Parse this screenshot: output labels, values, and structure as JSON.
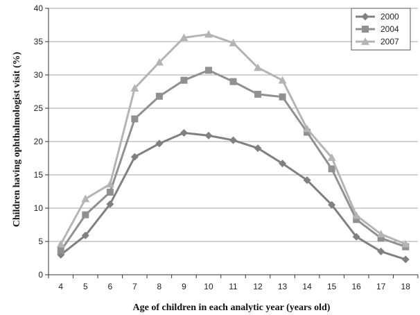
{
  "chart_data": {
    "type": "line",
    "title": "",
    "xlabel": "Age of children in each analytic year (years old)",
    "ylabel": "Children having ophthalmologist visit (%)",
    "x": [
      4,
      5,
      6,
      7,
      8,
      9,
      10,
      11,
      12,
      13,
      14,
      15,
      16,
      17,
      18
    ],
    "xlim": [
      4,
      18
    ],
    "ylim": [
      0,
      40
    ],
    "yticks": [
      0,
      5,
      10,
      15,
      20,
      25,
      30,
      35,
      40
    ],
    "grid": true,
    "legend_position": "top-right",
    "series": [
      {
        "name": "2000",
        "marker": "diamond",
        "color": "#808080",
        "values": [
          3.0,
          5.9,
          10.6,
          17.7,
          19.7,
          21.3,
          20.9,
          20.2,
          19.0,
          16.7,
          14.2,
          10.5,
          5.7,
          3.5,
          2.3
        ]
      },
      {
        "name": "2004",
        "marker": "square",
        "color": "#909090",
        "values": [
          3.6,
          9.0,
          12.4,
          23.4,
          26.8,
          29.2,
          30.7,
          29.0,
          27.1,
          26.7,
          21.4,
          15.9,
          8.3,
          5.5,
          4.2
        ]
      },
      {
        "name": "2007",
        "marker": "triangle",
        "color": "#b4b4b4",
        "values": [
          4.6,
          11.4,
          13.6,
          28.0,
          31.9,
          35.6,
          36.1,
          34.8,
          31.1,
          29.2,
          21.9,
          17.6,
          8.9,
          6.1,
          4.6
        ]
      }
    ]
  }
}
